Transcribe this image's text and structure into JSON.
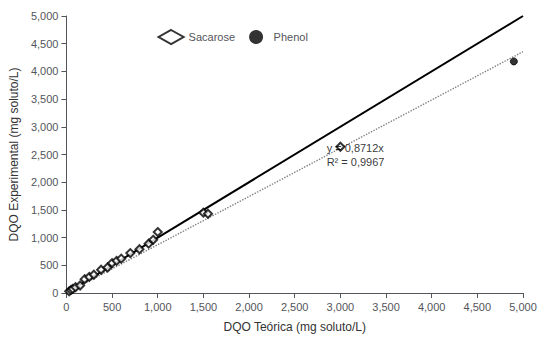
{
  "chart_data": {
    "type": "scatter",
    "xlabel": "DQO Teórica (mg soluto/L)",
    "ylabel": "DQO Experimental (mg soluto/L)",
    "xlim": [
      0,
      5000
    ],
    "ylim": [
      0,
      5000
    ],
    "xticks": [
      0,
      500,
      1000,
      1500,
      2000,
      2500,
      3000,
      3500,
      4000,
      4500,
      5000
    ],
    "yticks": [
      0,
      500,
      1000,
      1500,
      2000,
      2500,
      3000,
      3500,
      4000,
      4500,
      5000
    ],
    "grid": false,
    "legend": "upper left",
    "series": [
      {
        "type": "line",
        "color": "#000000",
        "line_style": "solid",
        "x": [
          0,
          5000
        ],
        "values": [
          0,
          5000
        ]
      },
      {
        "type": "line",
        "color": "#808080",
        "line_style": "dotted",
        "x": [
          0,
          5000
        ],
        "values": [
          0,
          4356
        ]
      },
      {
        "name": "Sacarose",
        "type": "scatter",
        "marker": "open_diamond",
        "color": "#000000",
        "x": [
          30,
          50,
          70,
          100,
          150,
          200,
          250,
          300,
          380,
          450,
          500,
          550,
          600,
          700,
          800,
          900,
          950,
          1000,
          1500,
          1550,
          3000
        ],
        "values": [
          30,
          55,
          75,
          105,
          135,
          250,
          290,
          330,
          420,
          460,
          540,
          580,
          620,
          720,
          790,
          890,
          960,
          1100,
          1450,
          1430,
          2640
        ]
      },
      {
        "name": "Phenol",
        "type": "scatter",
        "marker": "circle",
        "color": "#000000",
        "x": [
          4900
        ],
        "values": [
          4180
        ]
      }
    ],
    "annotations": [
      {
        "text": "y = 0,8712x\nR² = 0,9967",
        "x": 2850,
        "y": 2750
      }
    ]
  }
}
